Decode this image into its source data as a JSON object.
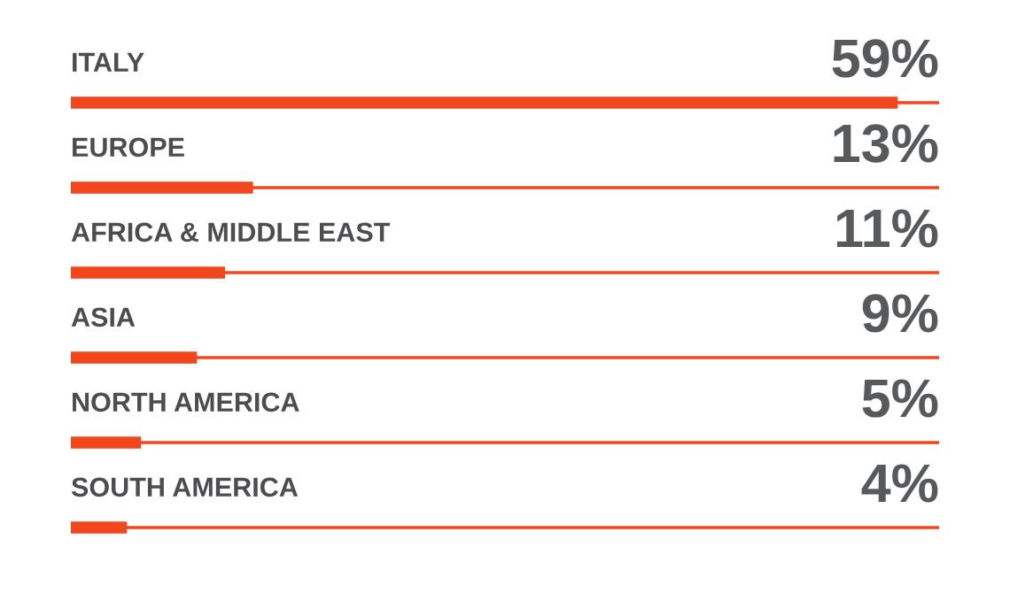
{
  "chart_data": {
    "type": "bar",
    "orientation": "horizontal",
    "categories": [
      "ITALY",
      "EUROPE",
      "AFRICA & MIDDLE EAST",
      "ASIA",
      "NORTH AMERICA",
      "SOUTH AMERICA"
    ],
    "values": [
      59,
      13,
      11,
      9,
      5,
      4
    ],
    "value_labels": [
      "59%",
      "13%",
      "11%",
      "9%",
      "5%",
      "4%"
    ],
    "color": "#f2471c"
  }
}
